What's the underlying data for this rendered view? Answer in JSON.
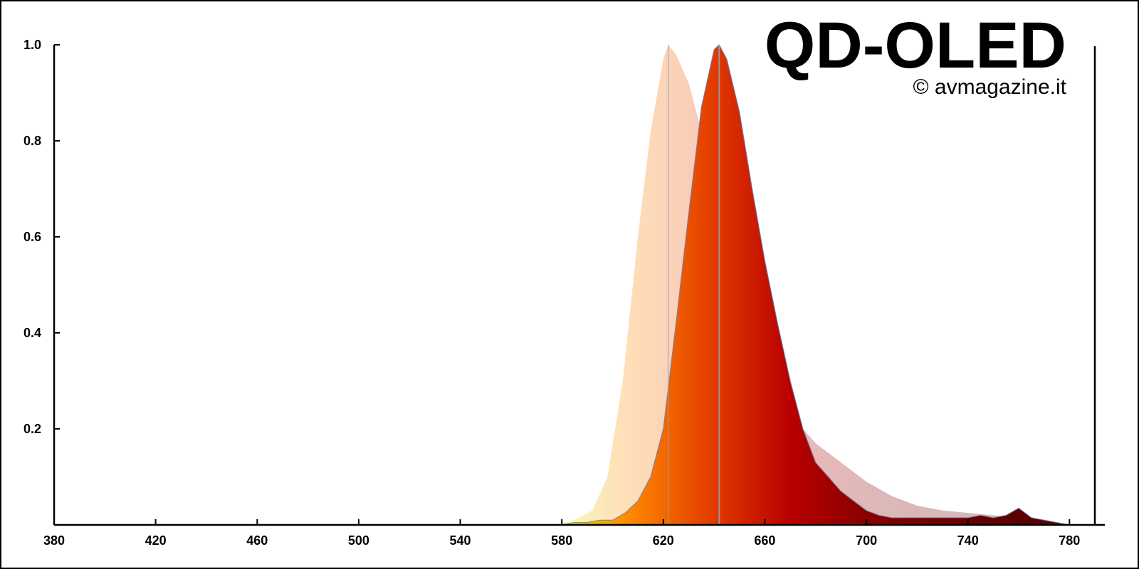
{
  "chart_data": {
    "type": "area",
    "title": "QD-OLED",
    "subtitle": "© avmagazine.it",
    "xlabel": "",
    "ylabel": "",
    "xlim": [
      380,
      790
    ],
    "ylim": [
      0,
      1.0
    ],
    "x_ticks": [
      380,
      420,
      460,
      500,
      540,
      580,
      620,
      660,
      700,
      740,
      780
    ],
    "y_ticks": [
      0.2,
      0.4,
      0.6,
      0.8,
      1.0
    ],
    "y_tick_labels": [
      "0.2",
      "0.4",
      "0.6",
      "0.8",
      "1.0"
    ],
    "grid": false,
    "legend": "none",
    "series": [
      {
        "peak_x": 622,
        "fill": "spectral-gradient",
        "opacity": 0.28,
        "x": [
          578,
          585,
          592,
          598,
          604,
          610,
          615,
          620,
          622,
          625,
          630,
          635,
          640,
          645,
          650,
          655,
          660,
          665,
          670,
          675,
          680,
          690,
          700,
          710,
          720,
          730,
          740,
          750,
          760,
          770,
          780
        ],
        "y": [
          0.0,
          0.01,
          0.03,
          0.1,
          0.3,
          0.6,
          0.82,
          0.97,
          1.0,
          0.98,
          0.92,
          0.82,
          0.72,
          0.62,
          0.52,
          0.42,
          0.33,
          0.27,
          0.23,
          0.2,
          0.17,
          0.13,
          0.09,
          0.06,
          0.04,
          0.03,
          0.025,
          0.02,
          0.015,
          0.01,
          0.0
        ]
      },
      {
        "peak_x": 642,
        "fill": "spectral-gradient",
        "opacity": 1.0,
        "x": [
          580,
          585,
          590,
          595,
          600,
          605,
          610,
          615,
          620,
          625,
          630,
          635,
          640,
          642,
          645,
          650,
          655,
          660,
          665,
          670,
          675,
          680,
          685,
          690,
          695,
          700,
          705,
          710,
          720,
          730,
          740,
          745,
          750,
          755,
          760,
          765,
          770,
          775,
          780
        ],
        "y": [
          0.0,
          0.005,
          0.005,
          0.01,
          0.01,
          0.025,
          0.05,
          0.1,
          0.2,
          0.42,
          0.65,
          0.87,
          0.99,
          1.0,
          0.97,
          0.86,
          0.7,
          0.55,
          0.42,
          0.3,
          0.2,
          0.13,
          0.1,
          0.07,
          0.05,
          0.03,
          0.02,
          0.015,
          0.015,
          0.015,
          0.015,
          0.02,
          0.015,
          0.02,
          0.035,
          0.015,
          0.01,
          0.005,
          0.0
        ]
      }
    ]
  }
}
